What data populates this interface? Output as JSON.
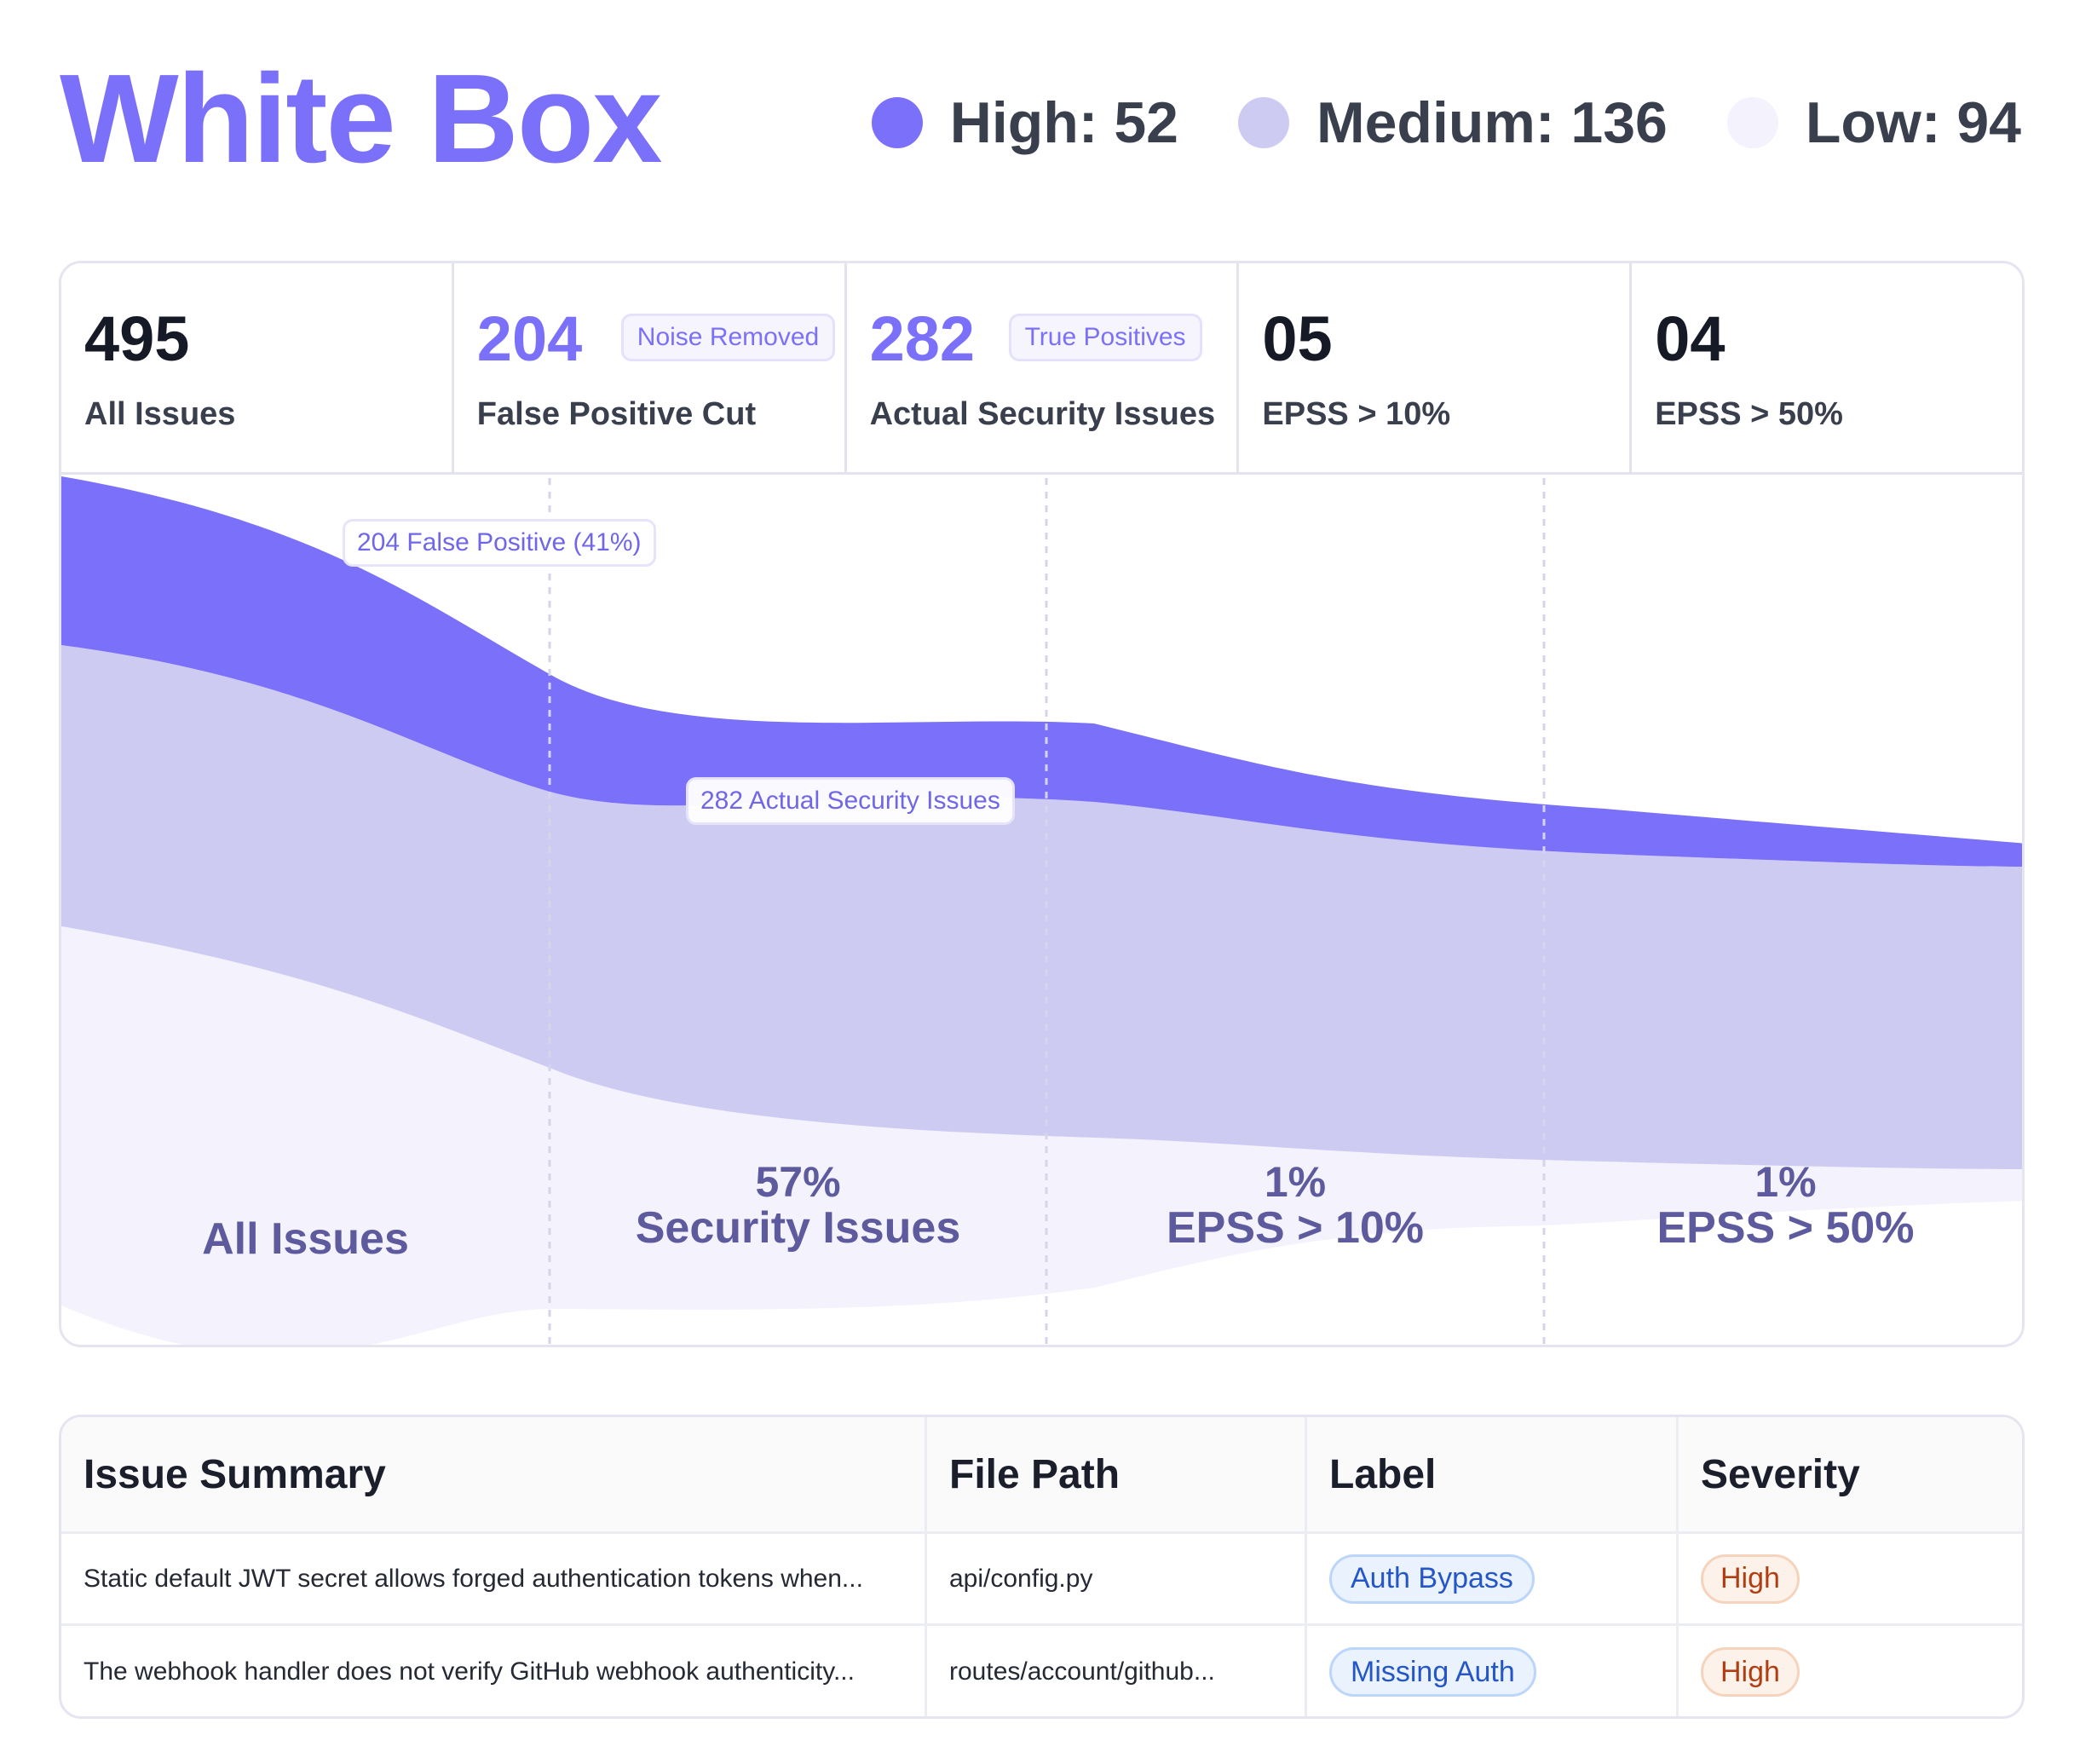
{
  "header": {
    "title": "White Box",
    "legend": [
      {
        "label": "High: 52",
        "color": "#7b70f9"
      },
      {
        "label": "Medium: 136",
        "color": "#cecbf2"
      },
      {
        "label": "Low: 94",
        "color": "#f3f2fd"
      }
    ]
  },
  "stats": [
    {
      "value": "495",
      "label": "All Issues"
    },
    {
      "value": "204",
      "label": "False Positive Cut",
      "badge": "Noise Removed"
    },
    {
      "value": "282",
      "label": "Actual Security Issues",
      "badge": "True Positives"
    },
    {
      "value": "05",
      "label": "EPSS > 10%"
    },
    {
      "value": "04",
      "label": "EPSS > 50%"
    }
  ],
  "funnel": {
    "colors": {
      "high": "#7b70f9",
      "medium": "#cecbf2",
      "low": "#f3f2fd"
    },
    "callouts": {
      "false_positive": "204 False Positive (41%)",
      "actual": "282 Actual Security Issues"
    },
    "stages": [
      {
        "pct": "",
        "name": "All Issues"
      },
      {
        "pct": "57%",
        "name": "Security Issues"
      },
      {
        "pct": "1%",
        "name": "EPSS > 10%"
      },
      {
        "pct": "1%",
        "name": "EPSS > 50%"
      }
    ]
  },
  "table": {
    "headers": {
      "summary": "Issue Summary",
      "path": "File Path",
      "label": "Label",
      "severity": "Severity"
    },
    "rows": [
      {
        "summary": "Static default JWT secret allows forged authentication tokens when...",
        "path": "api/config.py",
        "label": "Auth Bypass",
        "severity": "High"
      },
      {
        "summary": "The webhook handler does not verify GitHub webhook authenticity...",
        "path": "routes/account/github...",
        "label": "Missing Auth",
        "severity": "High"
      }
    ]
  }
}
